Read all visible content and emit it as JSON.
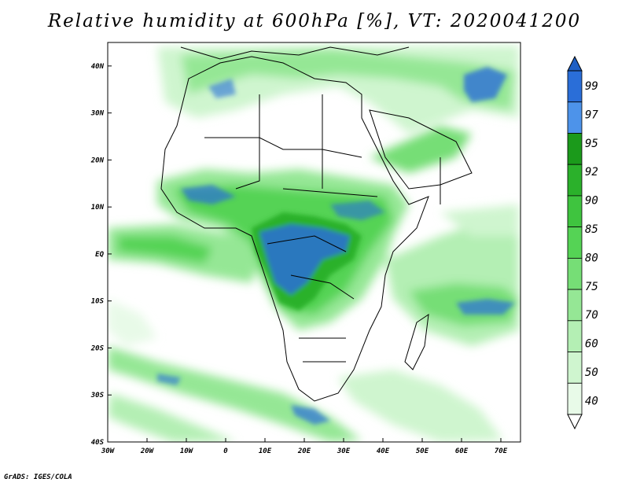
{
  "map": {
    "title": "Relative humidity at 600hPa [%], VT: 2020041200",
    "credit": "GrADS: IGES/COLA",
    "lat_ticks": [
      "40N",
      "30N",
      "20N",
      "10N",
      "EQ",
      "10S",
      "20S",
      "30S",
      "40S"
    ],
    "lon_ticks": [
      "30W",
      "20W",
      "10W",
      "0",
      "10E",
      "20E",
      "30E",
      "40E",
      "50E",
      "60E",
      "70E"
    ],
    "lon_range": [
      -30,
      75
    ],
    "lat_range": [
      -40,
      45
    ],
    "colorbar": {
      "labels": [
        "99",
        "97",
        "95",
        "92",
        "90",
        "85",
        "80",
        "75",
        "70",
        "60",
        "50",
        "40"
      ],
      "colors": [
        "#2a6ed8",
        "#4d93ea",
        "#1b9a1b",
        "#2bb12b",
        "#3fc43f",
        "#55d355",
        "#76de76",
        "#95e795",
        "#b4efb4",
        "#cff5cf",
        "#e8fae8"
      ]
    }
  }
}
